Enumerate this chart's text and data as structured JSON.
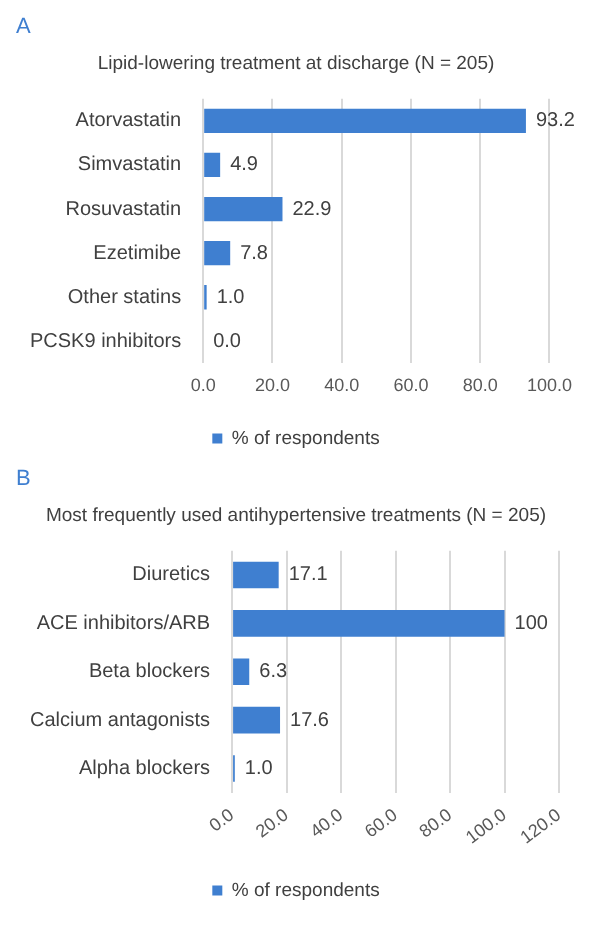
{
  "chart_data": [
    {
      "type": "bar",
      "orientation": "horizontal",
      "title": "Lipid-lowering treatment at discharge (N = 205)",
      "annotations": [
        "A"
      ],
      "categories": [
        "Atorvastatin",
        "Simvastatin",
        "Rosuvastatin",
        "Ezetimibe",
        "Other statins",
        "PCSK9 inhibitors"
      ],
      "series": [
        {
          "name": "% of respondents",
          "color": "#3f7fd0",
          "values": [
            93.2,
            4.9,
            22.9,
            7.8,
            1.0,
            0.0
          ],
          "value_labels": [
            "93.2",
            "4.9",
            "22.9",
            "7.8",
            "1.0",
            "0.0"
          ]
        }
      ],
      "xlim": [
        0,
        100
      ],
      "xticks": [
        {
          "value": 0,
          "label": "0.0"
        },
        {
          "value": 20,
          "label": "20.0"
        },
        {
          "value": 40,
          "label": "40.0"
        },
        {
          "value": 60,
          "label": "60.0"
        },
        {
          "value": 80,
          "label": "80.0"
        },
        {
          "value": 100,
          "label": "100.0"
        }
      ],
      "grid": "x",
      "legend": "bottom"
    },
    {
      "type": "bar",
      "orientation": "horizontal",
      "title": "Most frequently used antihypertensive treatments (N = 205)",
      "annotations": [
        "B"
      ],
      "categories": [
        "Diuretics",
        "ACE inhibitors/ARB",
        "Beta blockers",
        "Calcium antagonists",
        "Alpha blockers"
      ],
      "series": [
        {
          "name": "% of respondents",
          "color": "#3f7fd0",
          "values": [
            17.1,
            100,
            6.3,
            17.6,
            1.0
          ],
          "value_labels": [
            "17.1",
            "100",
            "6.3",
            "17.6",
            "1.0"
          ]
        }
      ],
      "xlim": [
        0,
        120
      ],
      "xticks": [
        {
          "value": 0,
          "label": "0.0"
        },
        {
          "value": 20,
          "label": "20.0"
        },
        {
          "value": 40,
          "label": "40.0"
        },
        {
          "value": 60,
          "label": "60.0"
        },
        {
          "value": 80,
          "label": "80.0"
        },
        {
          "value": 100,
          "label": "100.0"
        },
        {
          "value": 120,
          "label": "120.0"
        }
      ],
      "grid": "x",
      "legend": "bottom"
    }
  ]
}
